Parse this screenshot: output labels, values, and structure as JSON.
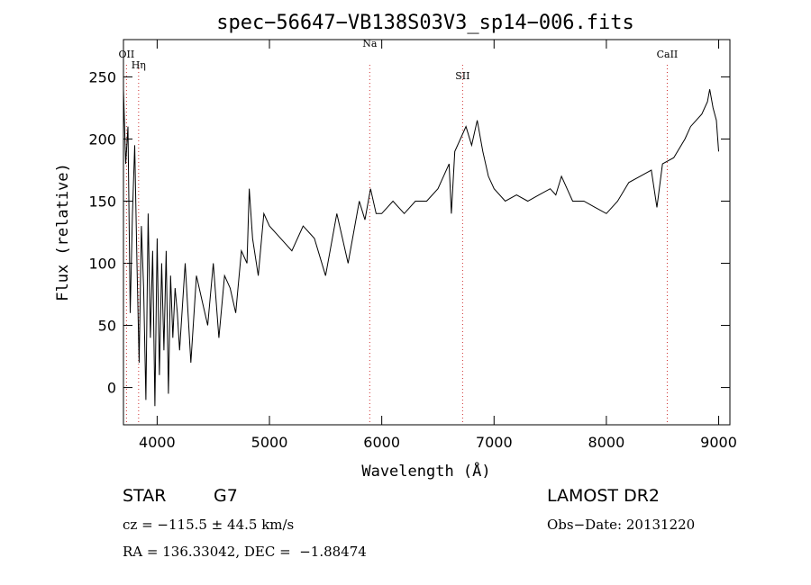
{
  "chart_data": {
    "type": "line",
    "title": "spec−56647−VB138S03V3_sp14−006.fits",
    "xlabel": "Wavelength (Å)",
    "ylabel": "Flux (relative)",
    "xlim": [
      3700,
      9100
    ],
    "ylim": [
      -30,
      280
    ],
    "x_ticks": [
      4000,
      5000,
      6000,
      7000,
      8000,
      9000
    ],
    "y_ticks": [
      0,
      50,
      100,
      150,
      200,
      250
    ],
    "grid": false,
    "line_color": "#000000",
    "marker_color": "#d03030",
    "spectral_lines": [
      {
        "name": "OII",
        "wavelength": 3727
      },
      {
        "name": "Hη",
        "wavelength": 3835
      },
      {
        "name": "Na",
        "wavelength": 5893
      },
      {
        "name": "SII",
        "wavelength": 6720
      },
      {
        "name": "CaII",
        "wavelength": 8542
      }
    ],
    "series": [
      {
        "x": [
          3700,
          3720,
          3740,
          3760,
          3780,
          3800,
          3820,
          3840,
          3860,
          3880,
          3900,
          3920,
          3940,
          3960,
          3980,
          4000,
          4020,
          4040,
          4060,
          4080,
          4100,
          4120,
          4140,
          4160,
          4180,
          4200,
          4250,
          4300,
          4350,
          4400,
          4450,
          4500,
          4550,
          4600,
          4650,
          4700,
          4750,
          4800,
          4820,
          4850,
          4900,
          4950,
          5000,
          5100,
          5200,
          5300,
          5400,
          5500,
          5600,
          5700,
          5800,
          5850,
          5900,
          5950,
          6000,
          6100,
          6200,
          6300,
          6400,
          6500,
          6550,
          6600,
          6620,
          6650,
          6700,
          6750,
          6800,
          6850,
          6900,
          6950,
          7000,
          7100,
          7200,
          7300,
          7400,
          7500,
          7550,
          7600,
          7650,
          7700,
          7800,
          7900,
          8000,
          8100,
          8200,
          8300,
          8400,
          8450,
          8500,
          8600,
          8700,
          8750,
          8800,
          8850,
          8900,
          8920,
          8950,
          8980,
          9000
        ],
        "y": [
          240,
          180,
          210,
          60,
          140,
          195,
          100,
          20,
          130,
          80,
          -10,
          140,
          40,
          110,
          -15,
          120,
          10,
          100,
          30,
          110,
          -5,
          90,
          40,
          80,
          60,
          30,
          100,
          20,
          90,
          70,
          50,
          100,
          40,
          90,
          80,
          60,
          110,
          100,
          160,
          120,
          90,
          140,
          130,
          120,
          110,
          130,
          120,
          90,
          140,
          100,
          150,
          135,
          160,
          140,
          140,
          150,
          140,
          150,
          150,
          160,
          170,
          180,
          140,
          190,
          200,
          210,
          195,
          215,
          190,
          170,
          160,
          150,
          155,
          150,
          155,
          160,
          155,
          170,
          160,
          150,
          150,
          145,
          140,
          150,
          165,
          170,
          175,
          145,
          180,
          185,
          200,
          210,
          215,
          220,
          230,
          240,
          225,
          215,
          190
        ]
      }
    ],
    "info": {
      "object_class": "STAR",
      "subclass": "G7",
      "survey": "LAMOST DR2",
      "redshift_line": "cz = −115.5 ± 44.5 km/s",
      "obs_date_line": "Obs−Date: 20131220",
      "coords_line": "RA = 136.33042, DEC =  −1.88474"
    }
  }
}
